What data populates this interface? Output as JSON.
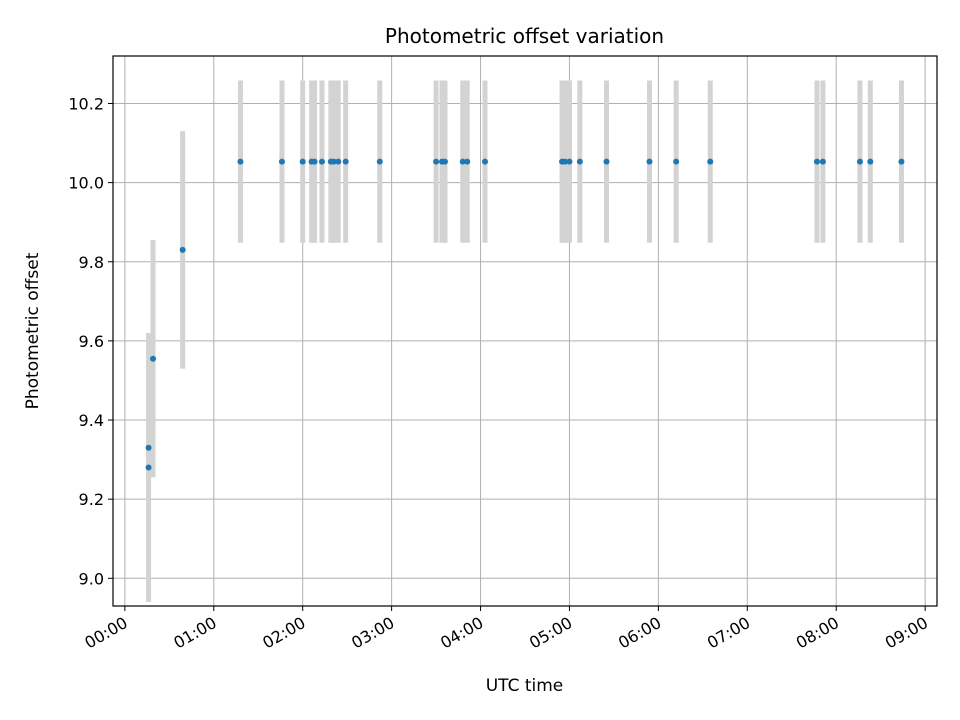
{
  "chart_data": {
    "type": "scatter",
    "title": "Photometric offset variation",
    "xlabel": "UTC time",
    "ylabel": "Photometric offset",
    "xlim": [
      "23:52",
      "09:08"
    ],
    "ylim": [
      8.93,
      10.32
    ],
    "x_ticks": [
      "00:00",
      "01:00",
      "02:00",
      "03:00",
      "04:00",
      "05:00",
      "06:00",
      "07:00",
      "08:00",
      "09:00"
    ],
    "y_ticks": [
      "9.0",
      "9.2",
      "9.4",
      "9.6",
      "9.8",
      "10.0",
      "10.2"
    ],
    "grid": true,
    "colors": {
      "point": "#1f77b4",
      "errorbar": "#d3d3d3",
      "grid": "#b0b0b0"
    },
    "series": [
      {
        "points": [
          {
            "x": "00:16",
            "y": 9.33,
            "err": 0.0
          },
          {
            "x": "00:16",
            "y": 9.28,
            "err": 0.34
          },
          {
            "x": "00:19",
            "y": 9.555,
            "err": 0.3
          },
          {
            "x": "00:39",
            "y": 9.83,
            "err": 0.3
          },
          {
            "x": "01:18",
            "y": 10.053,
            "err": 0.205
          },
          {
            "x": "01:46",
            "y": 10.053,
            "err": 0.205
          },
          {
            "x": "02:00",
            "y": 10.053,
            "err": 0.205
          },
          {
            "x": "02:06",
            "y": 10.053,
            "err": 0.205
          },
          {
            "x": "02:08",
            "y": 10.053,
            "err": 0.205
          },
          {
            "x": "02:13",
            "y": 10.053,
            "err": 0.205
          },
          {
            "x": "02:19",
            "y": 10.053,
            "err": 0.205
          },
          {
            "x": "02:21",
            "y": 10.053,
            "err": 0.205
          },
          {
            "x": "02:24",
            "y": 10.053,
            "err": 0.205
          },
          {
            "x": "02:29",
            "y": 10.053,
            "err": 0.205
          },
          {
            "x": "02:52",
            "y": 10.053,
            "err": 0.205
          },
          {
            "x": "03:30",
            "y": 10.053,
            "err": 0.205
          },
          {
            "x": "03:34",
            "y": 10.053,
            "err": 0.205
          },
          {
            "x": "03:36",
            "y": 10.053,
            "err": 0.205
          },
          {
            "x": "03:48",
            "y": 10.053,
            "err": 0.205
          },
          {
            "x": "03:51",
            "y": 10.053,
            "err": 0.205
          },
          {
            "x": "04:03",
            "y": 10.053,
            "err": 0.205
          },
          {
            "x": "04:55",
            "y": 10.053,
            "err": 0.205
          },
          {
            "x": "04:57",
            "y": 10.053,
            "err": 0.205
          },
          {
            "x": "05:00",
            "y": 10.053,
            "err": 0.205
          },
          {
            "x": "05:07",
            "y": 10.053,
            "err": 0.205
          },
          {
            "x": "05:25",
            "y": 10.053,
            "err": 0.205
          },
          {
            "x": "05:54",
            "y": 10.053,
            "err": 0.205
          },
          {
            "x": "06:12",
            "y": 10.053,
            "err": 0.205
          },
          {
            "x": "06:35",
            "y": 10.053,
            "err": 0.205
          },
          {
            "x": "07:47",
            "y": 10.053,
            "err": 0.205
          },
          {
            "x": "07:51",
            "y": 10.053,
            "err": 0.205
          },
          {
            "x": "08:16",
            "y": 10.053,
            "err": 0.205
          },
          {
            "x": "08:23",
            "y": 10.053,
            "err": 0.205
          },
          {
            "x": "08:44",
            "y": 10.053,
            "err": 0.205
          }
        ]
      }
    ]
  }
}
